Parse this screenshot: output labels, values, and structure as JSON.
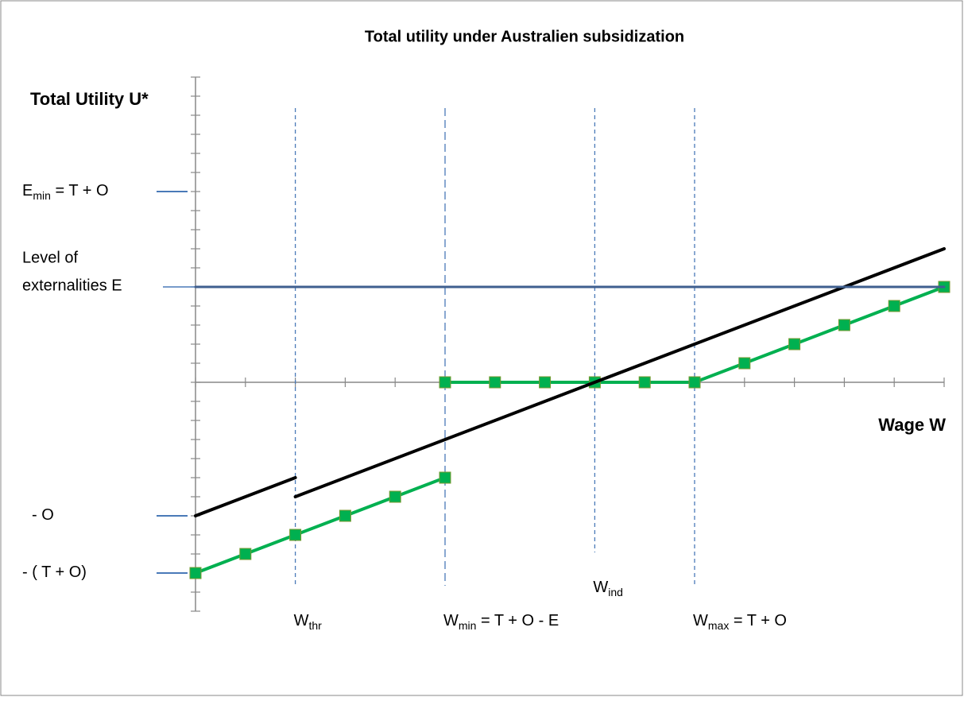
{
  "chart_data": {
    "type": "line",
    "title": "Total utility under Australien subsidization",
    "y_label": "Total Utility U*",
    "x_label": "Wage W",
    "xlim": [
      0,
      15
    ],
    "ylim": [
      -12,
      16
    ],
    "xticks": [
      0,
      1,
      2,
      3,
      4,
      5,
      6,
      7,
      8,
      9,
      10,
      11,
      12,
      13,
      14,
      15
    ],
    "yticks": [
      -12,
      -11,
      -10,
      -9,
      -8,
      -7,
      -6,
      -5,
      -4,
      -3,
      -2,
      -1,
      0,
      1,
      2,
      3,
      4,
      5,
      6,
      7,
      8,
      9,
      10,
      11,
      12,
      13,
      14,
      15,
      16
    ],
    "series": [
      {
        "color": "#00b050",
        "marker": "square",
        "x": [
          0,
          1,
          2,
          3,
          4,
          5
        ],
        "values": [
          -10,
          -9,
          -8,
          -7,
          -6,
          -5
        ]
      },
      {
        "color": "#00b050",
        "marker": "square",
        "x": [
          5,
          6,
          7,
          8,
          9,
          10,
          11,
          12,
          13,
          14,
          15
        ],
        "values": [
          0,
          0,
          0,
          0,
          0,
          0,
          1,
          2,
          3,
          4,
          5
        ]
      },
      {
        "color": "#000000",
        "x": [
          0,
          2
        ],
        "values": [
          -7,
          -5
        ]
      },
      {
        "color": "#000000",
        "x": [
          2,
          15
        ],
        "values": [
          -6,
          7
        ]
      },
      {
        "color": "#3f5f8f",
        "x": [
          0,
          15
        ],
        "values": [
          5,
          5
        ]
      }
    ],
    "y_annotations": [
      {
        "value": 10,
        "label": "E",
        "sub": "min",
        "rest": " = T + O"
      },
      {
        "value": 5,
        "lines": [
          "Level of",
          "externalities E"
        ]
      },
      {
        "value": -7,
        "label": "- O"
      },
      {
        "value": -10,
        "label": "- ( T + O)"
      }
    ],
    "x_annotations": [
      {
        "value": 2,
        "label": "W",
        "sub": "thr"
      },
      {
        "value": 5,
        "label": "W",
        "sub": "min",
        "rest": " = T + O - E"
      },
      {
        "value": 8,
        "label": "W",
        "sub": "ind"
      },
      {
        "value": 10,
        "label": "W",
        "sub": "max",
        "rest": " = T + O"
      }
    ]
  }
}
